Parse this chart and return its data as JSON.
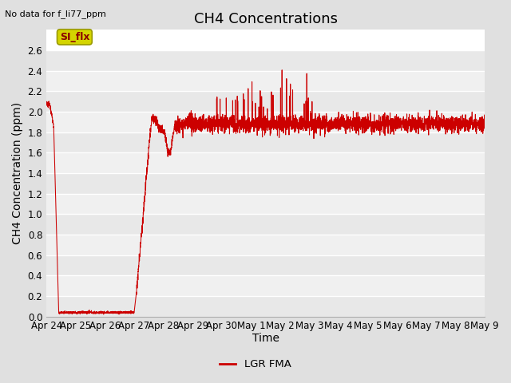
{
  "title": "CH4 Concentrations",
  "xlabel": "Time",
  "ylabel": "CH4 Concentration (ppm)",
  "top_left_text": "No data for f_li77_ppm",
  "legend_label": "LGR FMA",
  "legend_line_color": "#cc0000",
  "line_color": "#cc0000",
  "ylim": [
    0.0,
    2.8
  ],
  "yticks": [
    0.0,
    0.2,
    0.4,
    0.6,
    0.8,
    1.0,
    1.2,
    1.4,
    1.6,
    1.8,
    2.0,
    2.2,
    2.4,
    2.6
  ],
  "plot_bg_color": "#ffffff",
  "band_color_light": "#e8e8e8",
  "band_color_dark": "#d8d8d8",
  "figure_bg_color": "#e0e0e0",
  "grid_color": "#ffffff",
  "box_label": "SI_flx",
  "box_bg": "#d4d400",
  "box_border": "#999900",
  "title_fontsize": 13,
  "axis_label_fontsize": 10,
  "tick_fontsize": 8.5,
  "x_tick_labels": [
    "Apr 24",
    "Apr 25",
    "Apr 26",
    "Apr 27",
    "Apr 28",
    "Apr 29",
    "Apr 30",
    "May 1",
    "May 2",
    "May 3",
    "May 4",
    "May 5",
    "May 6",
    "May 7",
    "May 8",
    "May 9"
  ]
}
